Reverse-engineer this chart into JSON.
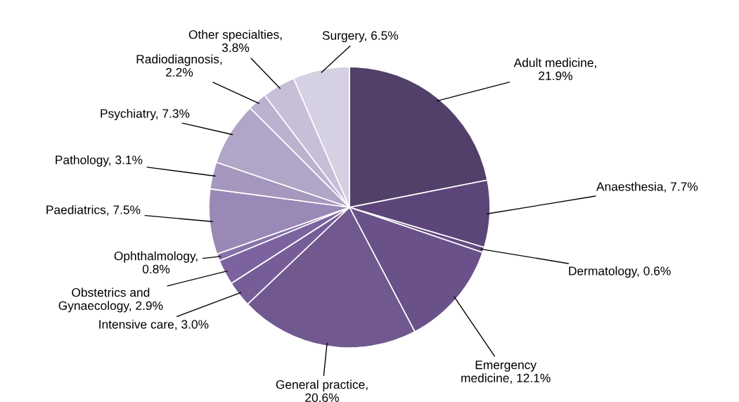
{
  "chart_data": {
    "type": "pie",
    "categories": [
      "Adult medicine",
      "Anaesthesia",
      "Dermatology",
      "Emergency medicine",
      "General practice",
      "Intensive care",
      "Obstetrics and Gynaecology",
      "Ophthalmology",
      "Paediatrics",
      "Pathology",
      "Psychiatry",
      "Radiodiagnosis",
      "Other specialties",
      "Surgery"
    ],
    "values": [
      21.9,
      7.7,
      0.6,
      12.1,
      20.6,
      3.0,
      2.9,
      0.8,
      7.5,
      3.1,
      7.3,
      2.2,
      3.8,
      6.5
    ],
    "value_labels": [
      ", 21.9%",
      ", 7.7%",
      ", 0.6%",
      ", 12.1%",
      ", 20.6%",
      ", 3.0%",
      ", 2.9%",
      ", 0.8%",
      ", 7.5%",
      ", 3.1%",
      ", 7.3%",
      ", 2.2%",
      ", 3.8%",
      ", 6.5%"
    ],
    "colors": [
      "#523f6a",
      "#5c4679",
      "#634b82",
      "#6a5189",
      "#71588f",
      "#775d98",
      "#7c63a0",
      "#8673a8",
      "#9a89b6",
      "#a597bd",
      "#b1a6c7",
      "#bbb2cf",
      "#c7bfd8",
      "#d5d0e2"
    ]
  }
}
